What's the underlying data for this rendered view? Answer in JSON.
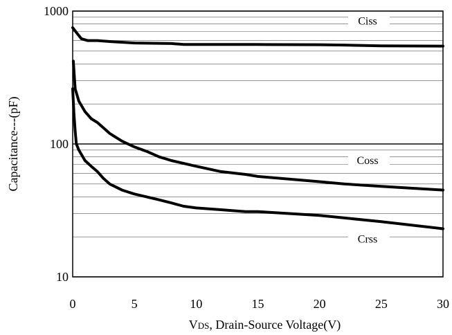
{
  "chart_data": {
    "type": "line",
    "xlabel_prefix": "V",
    "xlabel_sub": "DS",
    "xlabel_rest": ", Drain-Source Voltage(V)",
    "ylabel": "Capacitance---(pF)",
    "xlim": [
      0,
      30
    ],
    "ylim": [
      10,
      1000
    ],
    "yscale": "log",
    "grid": true,
    "x_ticks": [
      "0",
      "5",
      "10",
      "15",
      "20",
      "25",
      "30"
    ],
    "y_ticks": [
      "10",
      "100",
      "1000"
    ],
    "series": [
      {
        "name": "Ciss",
        "x": [
          0,
          0.3,
          0.7,
          1.2,
          2,
          3,
          5,
          8,
          9,
          12,
          15,
          20,
          22,
          25,
          30
        ],
        "values": [
          750,
          690,
          620,
          600,
          600,
          590,
          575,
          570,
          560,
          560,
          560,
          558,
          555,
          548,
          545
        ]
      },
      {
        "name": "Coss",
        "x": [
          0.05,
          0.2,
          0.5,
          1,
          1.5,
          2,
          3,
          4,
          5,
          6,
          7,
          8,
          10,
          12,
          14,
          15,
          20,
          22,
          25,
          30
        ],
        "values": [
          420,
          260,
          210,
          175,
          155,
          145,
          120,
          105,
          95,
          88,
          80,
          75,
          68,
          62,
          59,
          57,
          52,
          50,
          48,
          45
        ]
      },
      {
        "name": "Crss",
        "x": [
          0,
          0.1,
          0.2,
          0.3,
          0.5,
          1,
          1.5,
          2,
          2.5,
          3,
          4,
          5,
          7,
          8,
          9,
          10,
          12,
          14,
          15,
          20,
          25,
          30
        ],
        "values": [
          260,
          170,
          125,
          100,
          90,
          75,
          68,
          62,
          55,
          50,
          45,
          42,
          38,
          36,
          34,
          33,
          32,
          31,
          31,
          29,
          26,
          23
        ]
      }
    ]
  }
}
